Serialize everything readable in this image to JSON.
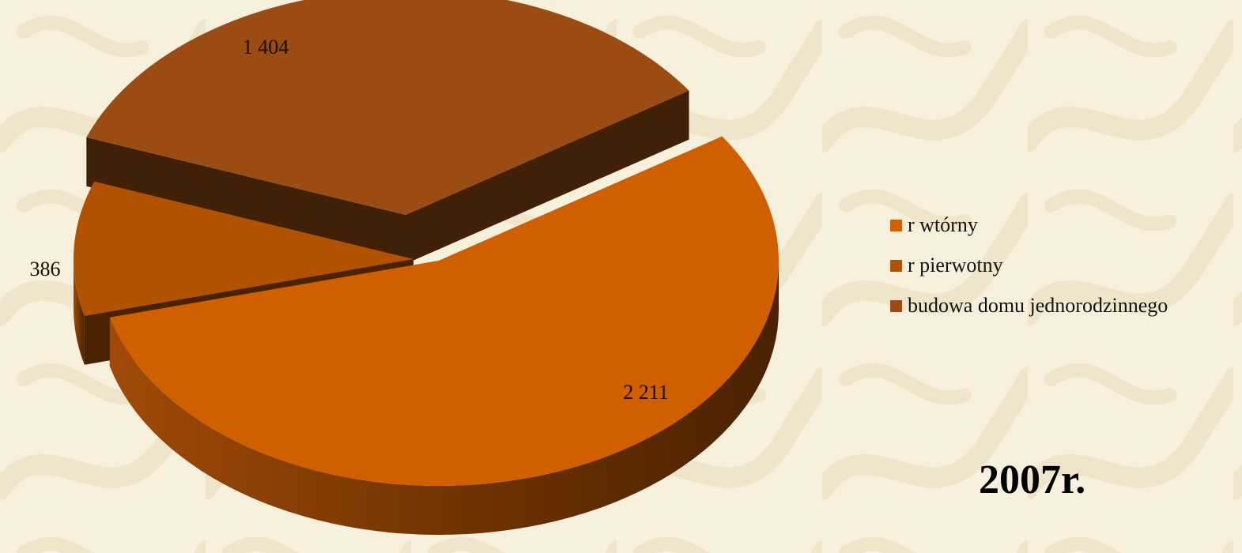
{
  "page": {
    "background": "#f6f0dd"
  },
  "chart_data": {
    "type": "pie",
    "style": "3d-exploded",
    "slices": [
      {
        "name": "r wtórny",
        "value": 2211,
        "label": "2 211",
        "color": "#d05f00"
      },
      {
        "name": "r pierwotny",
        "value": 386,
        "label": "386",
        "color": "#b05200"
      },
      {
        "name": "budowa domu jednorodzinnego",
        "value": 1404,
        "label": "1 404",
        "color": "#9a4c12"
      }
    ],
    "legend": {
      "placement": "right",
      "entries": [
        "r wtórny",
        "r pierwotny",
        "budowa domu jednorodzinnego"
      ]
    },
    "annotation": "2007r."
  }
}
